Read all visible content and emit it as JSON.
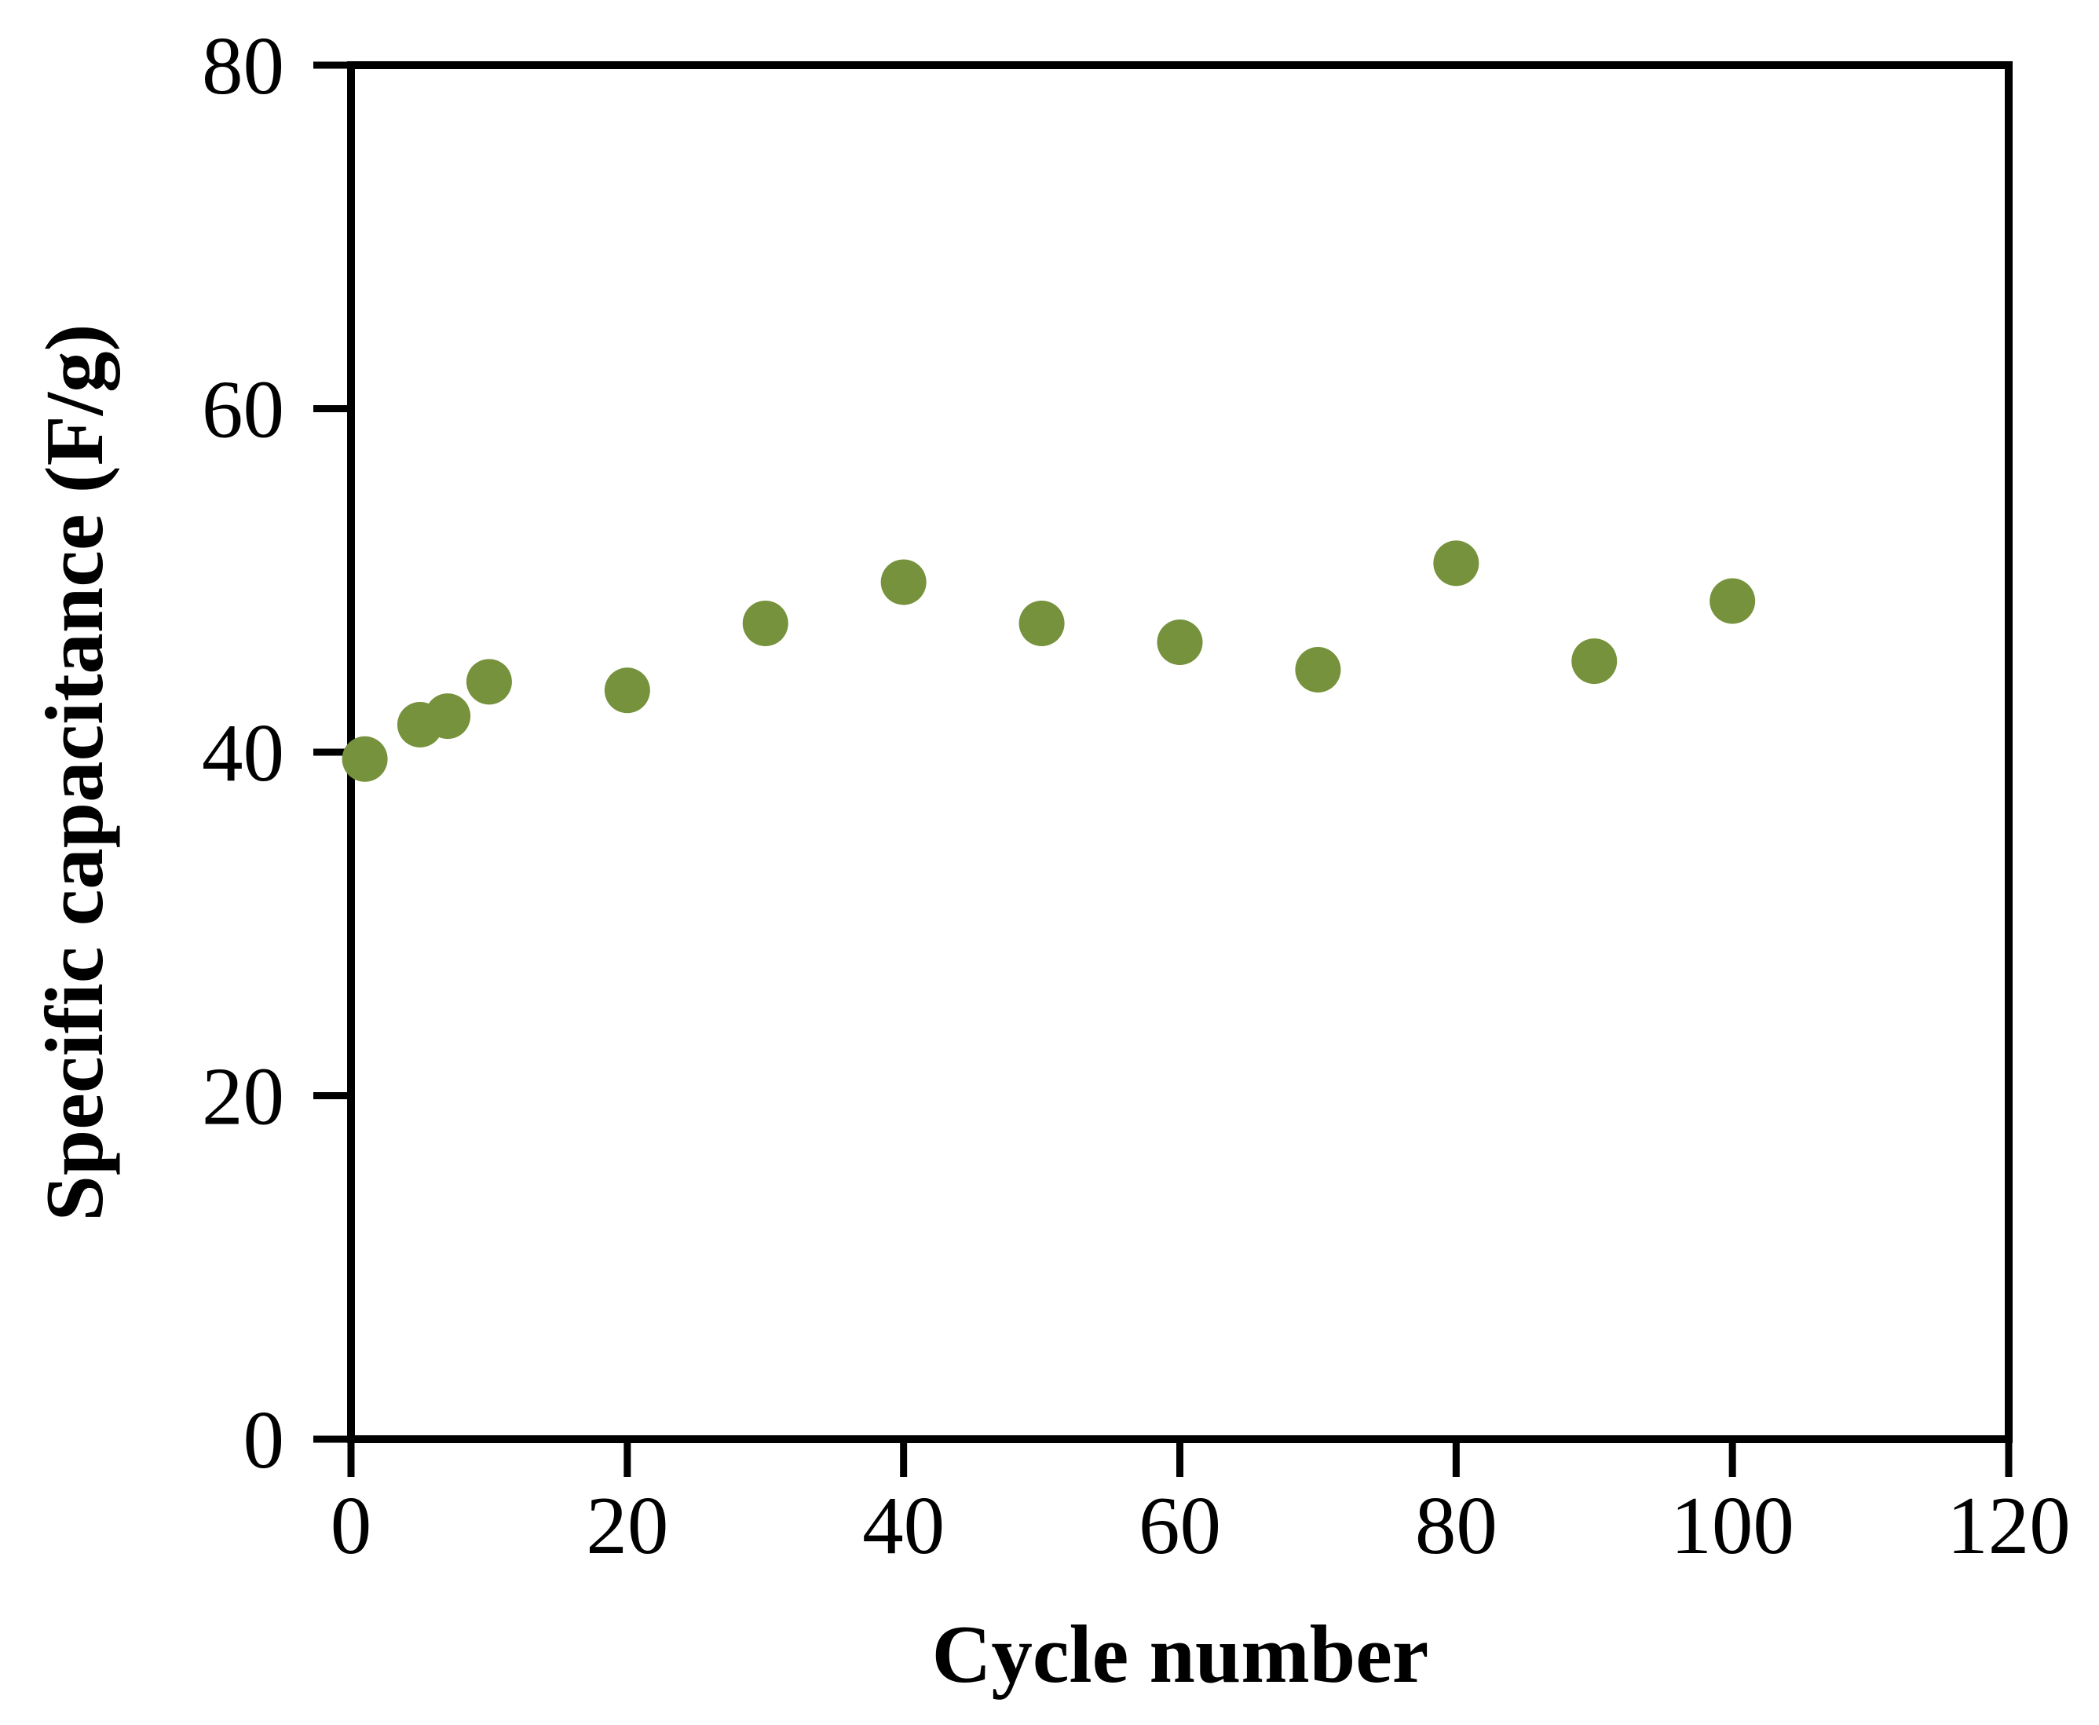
{
  "chart_data": {
    "type": "scatter",
    "title": "",
    "xlabel": "Cycle number",
    "ylabel": "Specific capacitance (F/g)",
    "xlim": [
      0,
      120
    ],
    "ylim": [
      0,
      80
    ],
    "xticks": [
      0,
      20,
      40,
      60,
      80,
      100,
      120
    ],
    "yticks": [
      0,
      20,
      40,
      60,
      80
    ],
    "grid": false,
    "legend_position": "none",
    "marker": {
      "shape": "circle",
      "color": "#76923C"
    },
    "axis_color": "#000000",
    "background_color": "#FFFFFF",
    "series": [
      {
        "name": "specific capacitance",
        "points": [
          {
            "x": 1,
            "y": 39.6
          },
          {
            "x": 5,
            "y": 41.6
          },
          {
            "x": 7,
            "y": 42.1
          },
          {
            "x": 10,
            "y": 44.1
          },
          {
            "x": 20,
            "y": 43.6
          },
          {
            "x": 30,
            "y": 47.5
          },
          {
            "x": 40,
            "y": 49.9
          },
          {
            "x": 50,
            "y": 47.5
          },
          {
            "x": 60,
            "y": 46.4
          },
          {
            "x": 70,
            "y": 44.8
          },
          {
            "x": 80,
            "y": 51.0
          },
          {
            "x": 90,
            "y": 45.3
          },
          {
            "x": 100,
            "y": 48.8
          }
        ]
      }
    ]
  }
}
